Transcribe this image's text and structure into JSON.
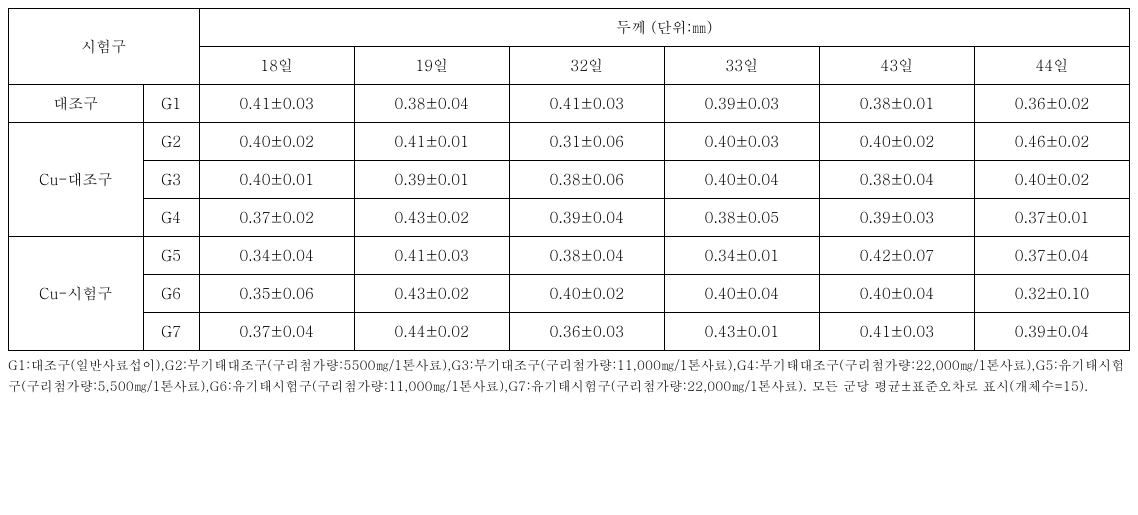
{
  "table": {
    "colgroup_header": "시험구",
    "thickness_header": "두께 (단위:㎜)",
    "days": [
      "18일",
      "19일",
      "32일",
      "33일",
      "43일",
      "44일"
    ],
    "groups": [
      {
        "label": "대조구",
        "rows": [
          {
            "code": "G1",
            "values": [
              "0.41±0.03",
              "0.38±0.04",
              "0.41±0.03",
              "0.39±0.03",
              "0.38±0.01",
              "0.36±0.02"
            ]
          }
        ]
      },
      {
        "label": "Cu-대조구",
        "rows": [
          {
            "code": "G2",
            "values": [
              "0.40±0.02",
              "0.41±0.01",
              "0.31±0.06",
              "0.40±0.03",
              "0.40±0.02",
              "0.46±0.02"
            ]
          },
          {
            "code": "G3",
            "values": [
              "0.40±0.01",
              "0.39±0.01",
              "0.38±0.06",
              "0.40±0.04",
              "0.38±0.04",
              "0.40±0.02"
            ]
          },
          {
            "code": "G4",
            "values": [
              "0.37±0.02",
              "0.43±0.02",
              "0.39±0.04",
              "0.38±0.05",
              "0.39±0.03",
              "0.37±0.01"
            ]
          }
        ]
      },
      {
        "label": "Cu-시험구",
        "rows": [
          {
            "code": "G5",
            "values": [
              "0.34±0.04",
              "0.41±0.03",
              "0.38±0.04",
              "0.34±0.01",
              "0.42±0.07",
              "0.37±0.04"
            ]
          },
          {
            "code": "G6",
            "values": [
              "0.35±0.06",
              "0.43±0.02",
              "0.40±0.02",
              "0.40±0.04",
              "0.40±0.04",
              "0.32±0.10"
            ]
          },
          {
            "code": "G7",
            "values": [
              "0.37±0.04",
              "0.44±0.02",
              "0.36±0.03",
              "0.43±0.01",
              "0.41±0.03",
              "0.39±0.04"
            ]
          }
        ]
      }
    ],
    "footnote": "G1:대조구(일반사료섭이),G2:무기태대조구(구리첨가량:5500㎎/1톤사료),G3:무기대조구(구리첨가량:11,000㎎/1톤사료),G4:무기태대조구(구리첨가량:22,000㎎/1톤사료),G5:유기태시험구(구리첨가량:5,500㎎/1톤사료),G6:유기태시험구(구리첨가량:11,000㎎/1톤사료),G7:유기태시험구(구리첨가량:22,000㎎/1톤사료).  모든  군당  평균±표준오차로  표시(개체수=15)."
  }
}
